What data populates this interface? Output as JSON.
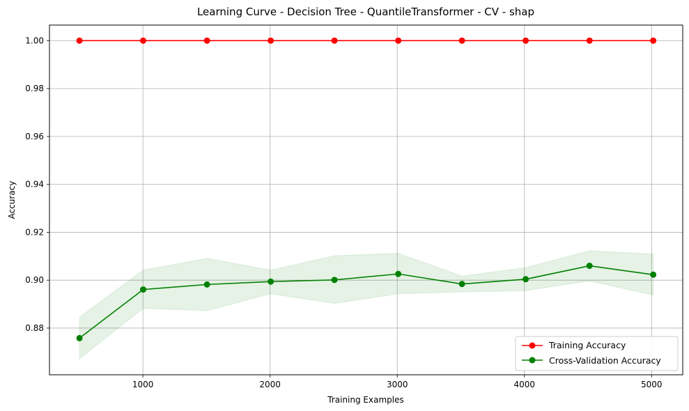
{
  "chart_data": {
    "type": "line",
    "title": "Learning Curve - Decision Tree - QuantileTransformer - CV - shap",
    "xlabel": "Training Examples",
    "ylabel": "Accuracy",
    "xlim": [
      265,
      5245
    ],
    "ylim": [
      0.8605,
      1.0065
    ],
    "x_ticks": [
      1000,
      2000,
      3000,
      4000,
      5000
    ],
    "x_tick_labels": [
      "1000",
      "2000",
      "3000",
      "4000",
      "5000"
    ],
    "y_ticks": [
      0.88,
      0.9,
      0.92,
      0.94,
      0.96,
      0.98,
      1.0
    ],
    "y_tick_labels": [
      "0.88",
      "0.90",
      "0.92",
      "0.94",
      "0.96",
      "0.98",
      "1.00"
    ],
    "grid": true,
    "legend_position": "lower-right",
    "x": [
      501,
      1002,
      1504,
      2005,
      2506,
      3008,
      3509,
      4010,
      4512,
      5013
    ],
    "series": [
      {
        "name": "Training Accuracy",
        "color": "#ff0000",
        "marker": "circle",
        "values": [
          1.0,
          1.0,
          1.0,
          1.0,
          1.0,
          1.0,
          1.0,
          1.0,
          1.0,
          1.0
        ]
      },
      {
        "name": "Cross-Validation Accuracy",
        "color": "#008000",
        "marker": "circle",
        "values": [
          0.8758,
          0.8961,
          0.8982,
          0.8994,
          0.9001,
          0.9026,
          0.8984,
          0.9004,
          0.906,
          0.9023
        ],
        "band_upper": [
          0.8845,
          0.9042,
          0.9091,
          0.9042,
          0.9102,
          0.9112,
          0.9017,
          0.9052,
          0.9123,
          0.9109
        ],
        "band_lower": [
          0.8672,
          0.8882,
          0.8873,
          0.8943,
          0.8903,
          0.8943,
          0.8951,
          0.8956,
          0.8997,
          0.8938
        ],
        "band_color": "#008000"
      }
    ]
  }
}
